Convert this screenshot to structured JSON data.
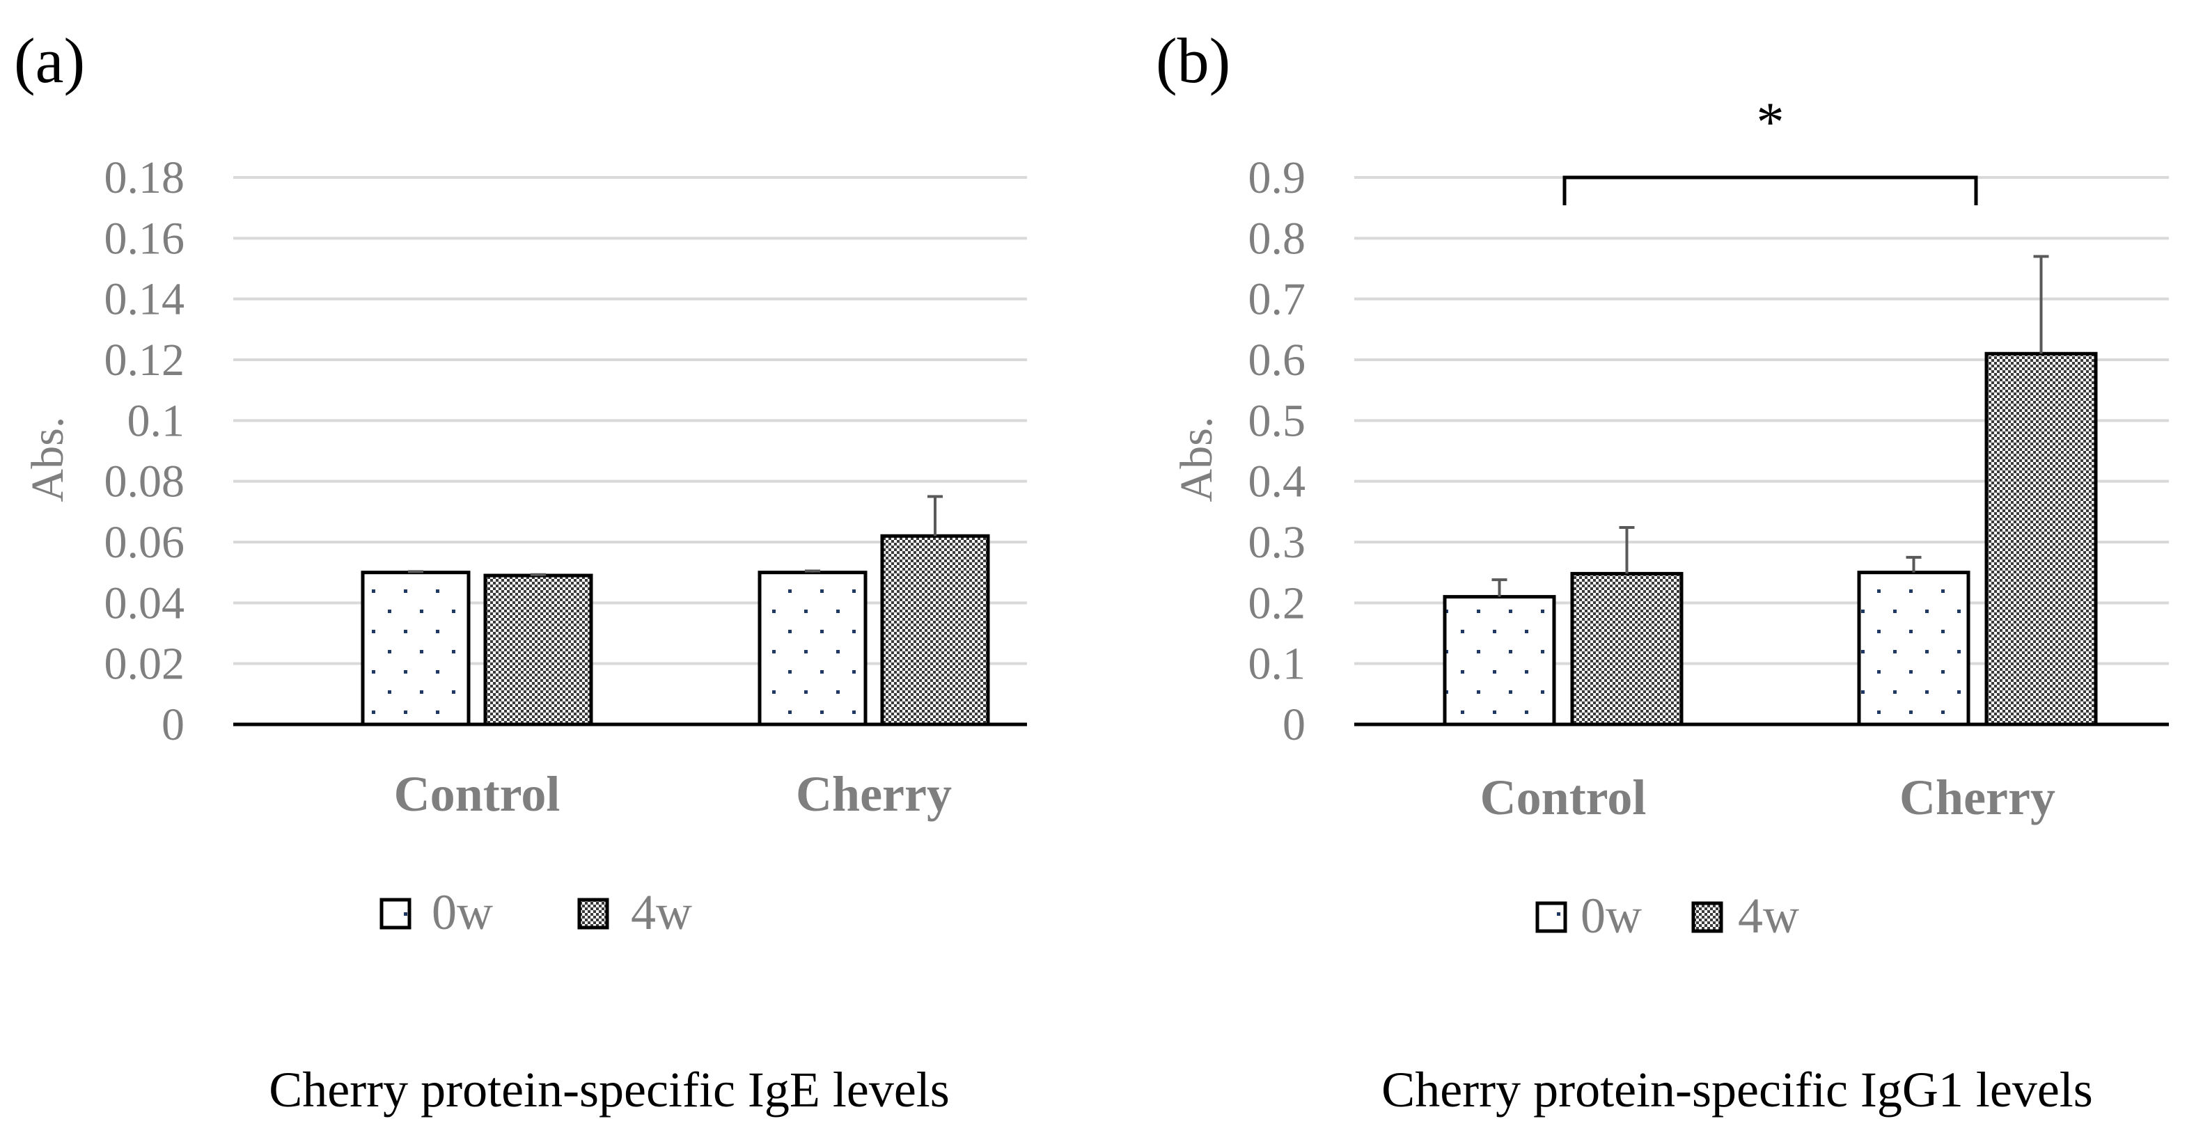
{
  "chart_data": [
    {
      "panel_label": "(a)",
      "type": "bar",
      "title": "Cherry protein-specific IgE levels",
      "ylabel": "Abs.",
      "xlabel": "",
      "ylim": [
        0,
        0.18
      ],
      "yticks": [
        "0",
        "0.02",
        "0.04",
        "0.06",
        "0.08",
        "0.1",
        "0.12",
        "0.14",
        "0.16",
        "0.18"
      ],
      "categories": [
        "Control",
        "Cherry"
      ],
      "series": [
        {
          "name": "0w",
          "pattern": "dots",
          "values": [
            0.05,
            0.05
          ],
          "errors": [
            0.0003,
            0.0005
          ]
        },
        {
          "name": "4w",
          "pattern": "checker",
          "values": [
            0.049,
            0.062
          ],
          "errors": [
            0.0003,
            0.013
          ]
        }
      ],
      "grid": true,
      "legend": "bottom-center"
    },
    {
      "panel_label": "(b)",
      "type": "bar",
      "title": "Cherry protein-specific IgG1 levels",
      "ylabel": "Abs.",
      "xlabel": "",
      "ylim": [
        0,
        0.9
      ],
      "yticks": [
        "0",
        "0.1",
        "0.2",
        "0.3",
        "0.4",
        "0.5",
        "0.6",
        "0.7",
        "0.8",
        "0.9"
      ],
      "categories": [
        "Control",
        "Cherry"
      ],
      "series": [
        {
          "name": "0w",
          "pattern": "dots",
          "values": [
            0.21,
            0.25
          ],
          "errors": [
            0.028,
            0.025
          ]
        },
        {
          "name": "4w",
          "pattern": "checker",
          "values": [
            0.248,
            0.61
          ],
          "errors": [
            0.076,
            0.16
          ]
        }
      ],
      "significance": {
        "marker": "*",
        "compare": [
          "Control",
          "Cherry"
        ]
      },
      "grid": true,
      "legend": "bottom-center"
    }
  ],
  "colors": {
    "gridline": "#d9d9d9",
    "axis": "#000000",
    "text_gray": "#7f7f7f",
    "bar_border": "#000000",
    "dot": "#1f3864",
    "error_bar": "#595959"
  }
}
